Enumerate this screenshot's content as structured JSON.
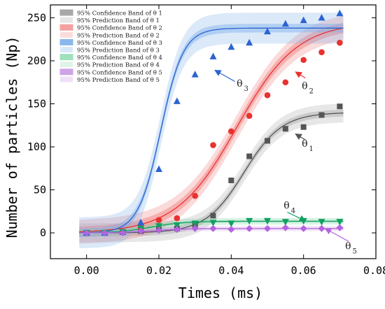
{
  "chart_data": {
    "type": "scatter",
    "xlabel": "Times (ms)",
    "ylabel": "Number of particles (Np)",
    "xlim": [
      -0.01,
      0.08
    ],
    "ylim": [
      -30,
      265
    ],
    "xticks": [
      "0.00",
      "0.02",
      "0.04",
      "0.06",
      "0.08"
    ],
    "xtick_values": [
      0.0,
      0.02,
      0.04,
      0.06,
      0.08
    ],
    "yticks": [
      "0",
      "50",
      "100",
      "150",
      "200",
      "250"
    ],
    "ytick_values": [
      0,
      50,
      100,
      150,
      200,
      250
    ],
    "grid": false,
    "legend_position": "top-left",
    "series": [
      {
        "key": "theta1",
        "symbol": "θ",
        "subscript": "1",
        "marker": "square",
        "color": "#555555",
        "band_color": "#a8a8a8",
        "x": [
          0.0,
          0.005,
          0.01,
          0.015,
          0.02,
          0.025,
          0.03,
          0.035,
          0.04,
          0.045,
          0.05,
          0.055,
          0.06,
          0.065,
          0.07
        ],
        "y": [
          0,
          0,
          1,
          2,
          4,
          5,
          9,
          20,
          61,
          89,
          107,
          121,
          123,
          137,
          147
        ],
        "fit": {
          "A": 140,
          "x0": 0.0435,
          "k": 190
        },
        "conf_band": 4,
        "pred_band": 11
      },
      {
        "key": "theta2",
        "symbol": "θ",
        "subscript": "2",
        "marker": "circle",
        "color": "#e8322f",
        "band_color": "#f07a7a",
        "x": [
          0.0,
          0.005,
          0.01,
          0.015,
          0.02,
          0.025,
          0.03,
          0.035,
          0.04,
          0.045,
          0.05,
          0.055,
          0.06,
          0.065,
          0.07
        ],
        "y": [
          0,
          0,
          1,
          6,
          15,
          17,
          43,
          102,
          118,
          136,
          160,
          175,
          201,
          210,
          221
        ],
        "fit": {
          "A": 245,
          "x0": 0.0415,
          "k": 120
        },
        "conf_band": 6,
        "pred_band": 14
      },
      {
        "key": "theta3",
        "symbol": "θ",
        "subscript": "3",
        "marker": "triangle-up",
        "color": "#2b63d1",
        "band_color": "#7eb0ea",
        "x": [
          0.0,
          0.005,
          0.01,
          0.015,
          0.02,
          0.025,
          0.03,
          0.035,
          0.04,
          0.045,
          0.05,
          0.055,
          0.06,
          0.065,
          0.07
        ],
        "y": [
          0,
          0,
          1,
          12,
          74,
          153,
          184,
          205,
          216,
          221,
          234,
          243,
          247,
          250,
          255
        ],
        "fit": {
          "A": 238,
          "x0": 0.0205,
          "k": 320
        },
        "conf_band": 5,
        "pred_band": 18
      },
      {
        "key": "theta4",
        "symbol": "θ",
        "subscript": "4",
        "marker": "triangle-down",
        "color": "#12a060",
        "band_color": "#7fd4a8",
        "x": [
          0.0,
          0.005,
          0.01,
          0.015,
          0.02,
          0.025,
          0.03,
          0.035,
          0.04,
          0.045,
          0.05,
          0.055,
          0.06,
          0.065,
          0.07
        ],
        "y": [
          0,
          0,
          1,
          5,
          8,
          9,
          11,
          12,
          11,
          14,
          14,
          13,
          14,
          13,
          13
        ],
        "fit": {
          "A": 13.5,
          "x0": 0.018,
          "k": 220
        },
        "conf_band": 1.5,
        "pred_band": 4
      },
      {
        "key": "theta5",
        "symbol": "θ",
        "subscript": "5",
        "marker": "diamond",
        "color": "#b464e0",
        "band_color": "#d8b0ee",
        "x": [
          0.0,
          0.005,
          0.01,
          0.015,
          0.02,
          0.025,
          0.03,
          0.035,
          0.04,
          0.045,
          0.05,
          0.055,
          0.06,
          0.065,
          0.07
        ],
        "y": [
          0,
          0,
          0,
          2,
          3,
          4,
          5,
          5,
          4,
          5,
          5,
          6,
          5,
          5,
          6
        ],
        "fit": {
          "A": 5,
          "x0": 0.018,
          "k": 220
        },
        "conf_band": 1,
        "pred_band": 3
      }
    ],
    "legend": [
      {
        "label": "95% Confidence Band of  θ 1",
        "color": "#a8a8a8",
        "kind": "confidence"
      },
      {
        "label": "95% Prediction Band of  θ 1",
        "color": "#e6e6e6",
        "kind": "prediction"
      },
      {
        "label": "95% Confidence Band of  θ 2",
        "color": "#f5a0a0",
        "kind": "confidence"
      },
      {
        "label": "95% Prediction Band of  θ 2",
        "color": "#fbdcdc",
        "kind": "prediction"
      },
      {
        "label": "95% Confidence Band of  θ 3",
        "color": "#8bb8ec",
        "kind": "confidence"
      },
      {
        "label": "95% Prediction Band of  θ 3",
        "color": "#d9e8f9",
        "kind": "prediction"
      },
      {
        "label": "95% Confidence Band of  θ 4",
        "color": "#9fe0bd",
        "kind": "confidence"
      },
      {
        "label": "95% Prediction Band of  θ 4",
        "color": "#dff3e8",
        "kind": "prediction"
      },
      {
        "label": "95% Confidence Band of  θ 5",
        "color": "#cfa3e6",
        "kind": "confidence"
      },
      {
        "label": "95% Prediction Band of  θ 5",
        "color": "#efe0f7",
        "kind": "prediction"
      }
    ],
    "annotations": [
      {
        "series": "theta3",
        "text": "θ",
        "sub": "3",
        "arrow_from": [
          0.041,
          176
        ],
        "arrow_to": [
          0.0355,
          189
        ],
        "label_at": [
          0.0415,
          170
        ]
      },
      {
        "series": "theta2",
        "text": "θ",
        "sub": "2",
        "arrow_from": [
          0.0605,
          180
        ],
        "arrow_to": [
          0.0578,
          187
        ],
        "label_at": [
          0.0595,
          167
        ]
      },
      {
        "series": "theta1",
        "text": "θ",
        "sub": "1",
        "arrow_from": [
          0.0605,
          108
        ],
        "arrow_to": [
          0.0578,
          115
        ],
        "label_at": [
          0.0595,
          100
        ]
      },
      {
        "series": "theta4",
        "text": "θ",
        "sub": "4",
        "arrow_from": [
          0.0555,
          24
        ],
        "arrow_to": [
          0.0605,
          14
        ],
        "label_at": [
          0.0545,
          28
        ]
      },
      {
        "series": "theta5",
        "text": "θ",
        "sub": "5",
        "arrow_from": [
          0.0725,
          -10
        ],
        "arrow_to": [
          0.066,
          5
        ],
        "label_at": [
          0.0715,
          -19
        ]
      }
    ]
  }
}
